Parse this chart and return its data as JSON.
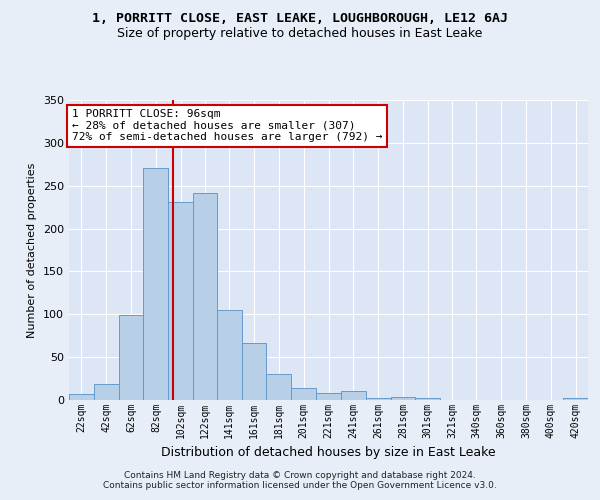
{
  "title1": "1, PORRITT CLOSE, EAST LEAKE, LOUGHBOROUGH, LE12 6AJ",
  "title2": "Size of property relative to detached houses in East Leake",
  "xlabel": "Distribution of detached houses by size in East Leake",
  "ylabel": "Number of detached properties",
  "footer": "Contains HM Land Registry data © Crown copyright and database right 2024.\nContains public sector information licensed under the Open Government Licence v3.0.",
  "annotation_line1": "1 PORRITT CLOSE: 96sqm",
  "annotation_line2": "← 28% of detached houses are smaller (307)",
  "annotation_line3": "72% of semi-detached houses are larger (792) →",
  "property_size": 96,
  "bar_categories": [
    "22sqm",
    "42sqm",
    "62sqm",
    "82sqm",
    "102sqm",
    "122sqm",
    "141sqm",
    "161sqm",
    "181sqm",
    "201sqm",
    "221sqm",
    "241sqm",
    "261sqm",
    "281sqm",
    "301sqm",
    "321sqm",
    "340sqm",
    "360sqm",
    "380sqm",
    "400sqm",
    "420sqm"
  ],
  "bar_left_edges": [
    12,
    32,
    52,
    72,
    92,
    112,
    131,
    151,
    171,
    191,
    211,
    231,
    251,
    271,
    291,
    311,
    330,
    350,
    370,
    390,
    410
  ],
  "bar_right_edges": [
    32,
    52,
    72,
    92,
    112,
    131,
    151,
    171,
    191,
    211,
    231,
    251,
    271,
    291,
    311,
    330,
    350,
    370,
    390,
    410,
    430
  ],
  "bar_heights": [
    7,
    19,
    99,
    271,
    231,
    241,
    105,
    67,
    30,
    14,
    8,
    10,
    2,
    3,
    2,
    0,
    0,
    0,
    0,
    0,
    2
  ],
  "bar_color": "#b8cfe8",
  "bar_edge_color": "#6699cc",
  "vline_x": 96,
  "vline_color": "#cc0000",
  "bg_color": "#e8eef7",
  "plot_bg_color": "#dce6f5",
  "grid_color": "#ffffff",
  "annotation_box_color": "#ffffff",
  "annotation_box_edge": "#cc0000",
  "ylim": [
    0,
    350
  ],
  "xlim": [
    12,
    430
  ],
  "yticks": [
    0,
    50,
    100,
    150,
    200,
    250,
    300,
    350
  ],
  "title1_fontsize": 9.5,
  "title2_fontsize": 9,
  "xlabel_fontsize": 9,
  "ylabel_fontsize": 8,
  "footer_fontsize": 6.5,
  "annotation_fontsize": 8
}
